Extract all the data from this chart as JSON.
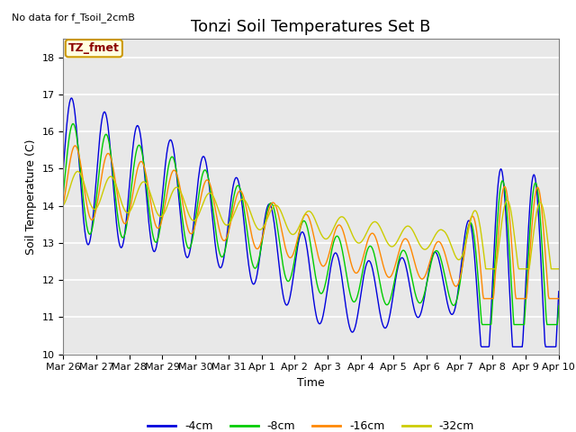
{
  "title": "Tonzi Soil Temperatures Set B",
  "no_data_text": "No data for f_Tsoil_2cmB",
  "tz_fmet_label": "TZ_fmet",
  "xlabel": "Time",
  "ylabel": "Soil Temperature (C)",
  "ylim": [
    10.0,
    18.5
  ],
  "yticks": [
    10.0,
    11.0,
    12.0,
    13.0,
    14.0,
    15.0,
    16.0,
    17.0,
    18.0
  ],
  "background_color": "#e8e8e8",
  "line_colors": {
    "-4cm": "#0000dd",
    "-8cm": "#00cc00",
    "-16cm": "#ff8800",
    "-32cm": "#cccc00"
  },
  "x_tick_labels": [
    "Mar 26",
    "Mar 27",
    "Mar 28",
    "Mar 29",
    "Mar 30",
    "Mar 31",
    "Apr 1",
    "Apr 2",
    "Apr 3",
    "Apr 4",
    "Apr 5",
    "Apr 6",
    "Apr 7",
    "Apr 8",
    "Apr 9",
    "Apr 10"
  ],
  "n_days": 15,
  "title_fontsize": 13,
  "label_fontsize": 9,
  "tick_fontsize": 8
}
